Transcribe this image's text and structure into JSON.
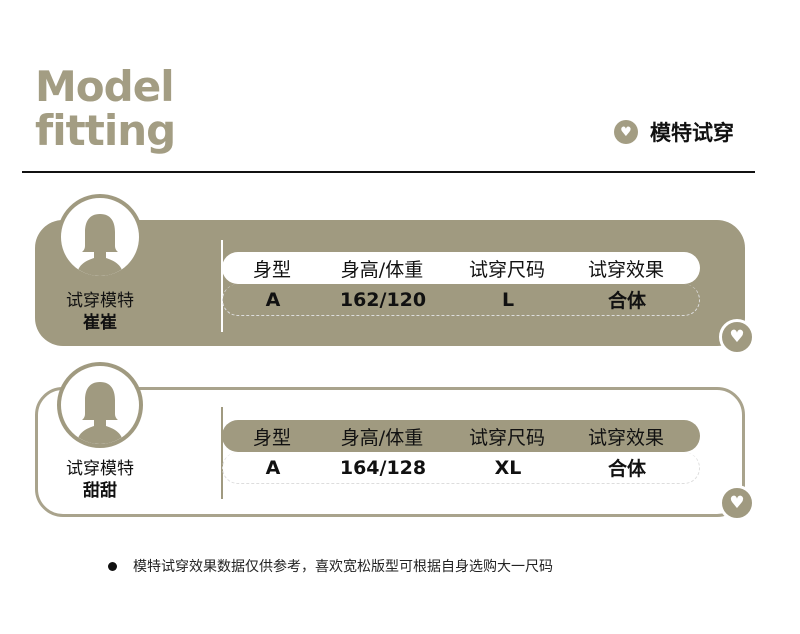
{
  "header": {
    "title_line1": "Model",
    "title_line2": "fitting",
    "tag": "模特试穿",
    "tag_icon": "heart-icon"
  },
  "colors": {
    "accent": "#a09a80",
    "text": "#111111"
  },
  "table_headers": [
    "身型",
    "身高/体重",
    "试穿尺码",
    "试穿效果"
  ],
  "models": [
    {
      "label": "试穿模特",
      "name": "崔崔",
      "values": [
        "A",
        "162/120",
        "L",
        "合体"
      ]
    },
    {
      "label": "试穿模特",
      "name": "甜甜",
      "values": [
        "A",
        "164/128",
        "XL",
        "合体"
      ]
    }
  ],
  "footnote": "模特试穿效果数据仅供参考，喜欢宽松版型可根据自身选购大一尺码"
}
